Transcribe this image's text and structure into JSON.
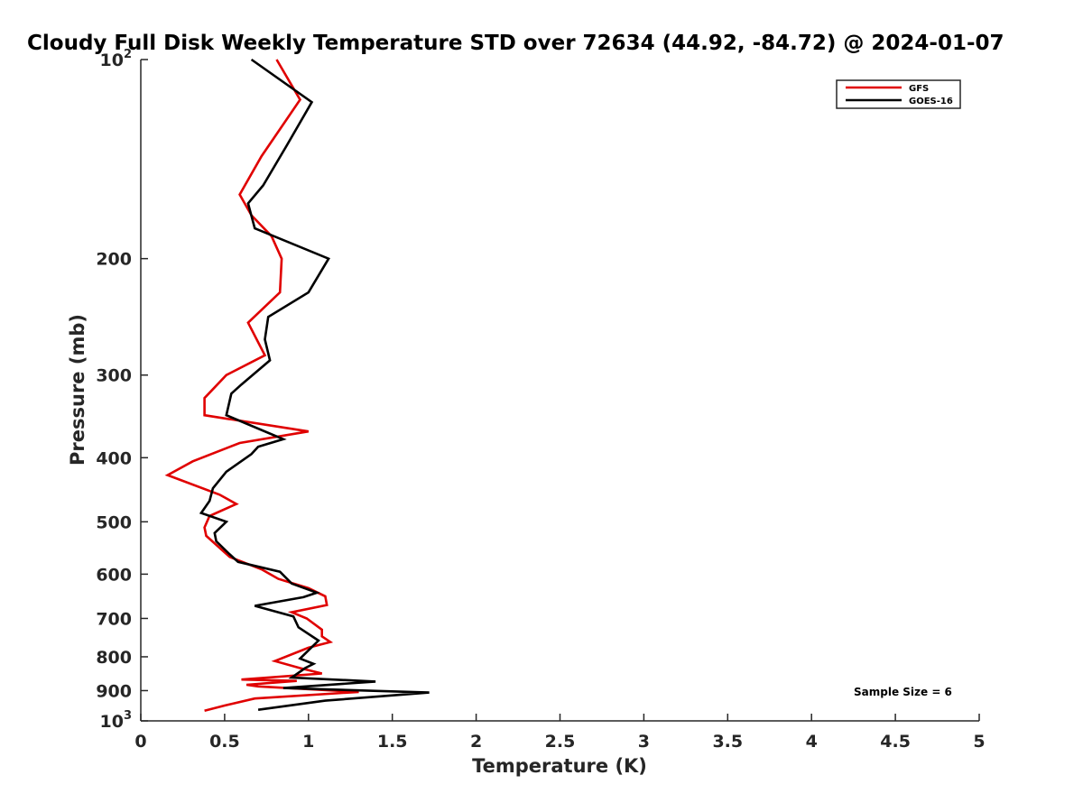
{
  "chart_data": {
    "type": "line",
    "title": "Cloudy Full Disk Weekly Temperature STD over 72634 (44.92, -84.72) @ 2024-01-07",
    "xlabel": "Temperature (K)",
    "ylabel": "Pressure (mb)",
    "xlim": [
      0,
      5
    ],
    "ylim": [
      100,
      1000
    ],
    "yscale": "log",
    "y_reversed": true,
    "grid": false,
    "legend_position": "top-right",
    "x_ticks": [
      0,
      0.5,
      1,
      1.5,
      2,
      2.5,
      3,
      3.5,
      4,
      4.5,
      5
    ],
    "x_tick_labels": [
      "0",
      "0.5",
      "1",
      "1.5",
      "2",
      "2.5",
      "3",
      "3.5",
      "4",
      "4.5",
      "5"
    ],
    "y_ticks": [
      {
        "value": 100,
        "base": "10",
        "exp": "2"
      },
      {
        "value": 200,
        "label": "200"
      },
      {
        "value": 300,
        "label": "300"
      },
      {
        "value": 400,
        "label": "400"
      },
      {
        "value": 500,
        "label": "500"
      },
      {
        "value": 600,
        "label": "600"
      },
      {
        "value": 700,
        "label": "700"
      },
      {
        "value": 800,
        "label": "800"
      },
      {
        "value": 900,
        "label": "900"
      },
      {
        "value": 1000,
        "base": "10",
        "exp": "3"
      }
    ],
    "series": [
      {
        "name": "GFS",
        "color": "#e00000",
        "points": [
          [
            0.81,
            100
          ],
          [
            0.95,
            115
          ],
          [
            0.72,
            140
          ],
          [
            0.59,
            160
          ],
          [
            0.66,
            172
          ],
          [
            0.78,
            185
          ],
          [
            0.84,
            200
          ],
          [
            0.83,
            225
          ],
          [
            0.64,
            250
          ],
          [
            0.74,
            280
          ],
          [
            0.51,
            300
          ],
          [
            0.38,
            325
          ],
          [
            0.38,
            345
          ],
          [
            1.0,
            365
          ],
          [
            0.59,
            380
          ],
          [
            0.31,
            405
          ],
          [
            0.16,
            425
          ],
          [
            0.47,
            455
          ],
          [
            0.57,
            470
          ],
          [
            0.41,
            490
          ],
          [
            0.38,
            510
          ],
          [
            0.39,
            525
          ],
          [
            0.53,
            565
          ],
          [
            0.72,
            590
          ],
          [
            0.82,
            610
          ],
          [
            1.0,
            630
          ],
          [
            1.1,
            648
          ],
          [
            1.11,
            668
          ],
          [
            0.9,
            685
          ],
          [
            0.99,
            700
          ],
          [
            1.08,
            728
          ],
          [
            1.08,
            745
          ],
          [
            1.13,
            760
          ],
          [
            1.0,
            775
          ],
          [
            0.8,
            812
          ],
          [
            0.95,
            832
          ],
          [
            1.08,
            848
          ],
          [
            0.6,
            866
          ],
          [
            0.93,
            870
          ],
          [
            0.63,
            882
          ],
          [
            0.7,
            887
          ],
          [
            1.3,
            904
          ],
          [
            0.68,
            925
          ],
          [
            0.5,
            948
          ],
          [
            0.38,
            965
          ]
        ]
      },
      {
        "name": "GOES-16",
        "color": "#000000",
        "points": [
          [
            0.66,
            100
          ],
          [
            1.02,
            116
          ],
          [
            0.87,
            135
          ],
          [
            0.73,
            155
          ],
          [
            0.64,
            165
          ],
          [
            0.68,
            180
          ],
          [
            1.12,
            200
          ],
          [
            1.0,
            225
          ],
          [
            0.76,
            245
          ],
          [
            0.74,
            265
          ],
          [
            0.77,
            285
          ],
          [
            0.6,
            310
          ],
          [
            0.54,
            320
          ],
          [
            0.51,
            345
          ],
          [
            0.85,
            375
          ],
          [
            0.7,
            385
          ],
          [
            0.66,
            395
          ],
          [
            0.51,
            420
          ],
          [
            0.43,
            445
          ],
          [
            0.41,
            465
          ],
          [
            0.36,
            485
          ],
          [
            0.51,
            500
          ],
          [
            0.44,
            520
          ],
          [
            0.45,
            535
          ],
          [
            0.53,
            560
          ],
          [
            0.58,
            575
          ],
          [
            0.83,
            595
          ],
          [
            0.9,
            620
          ],
          [
            1.05,
            640
          ],
          [
            0.97,
            650
          ],
          [
            0.68,
            670
          ],
          [
            0.91,
            695
          ],
          [
            0.94,
            722
          ],
          [
            1.06,
            756
          ],
          [
            0.95,
            805
          ],
          [
            1.03,
            820
          ],
          [
            0.98,
            832
          ],
          [
            0.9,
            860
          ],
          [
            1.4,
            872
          ],
          [
            0.85,
            892
          ],
          [
            1.72,
            906
          ],
          [
            1.1,
            932
          ],
          [
            0.7,
            962
          ]
        ]
      }
    ],
    "annotation": "Sample Size = 6"
  }
}
